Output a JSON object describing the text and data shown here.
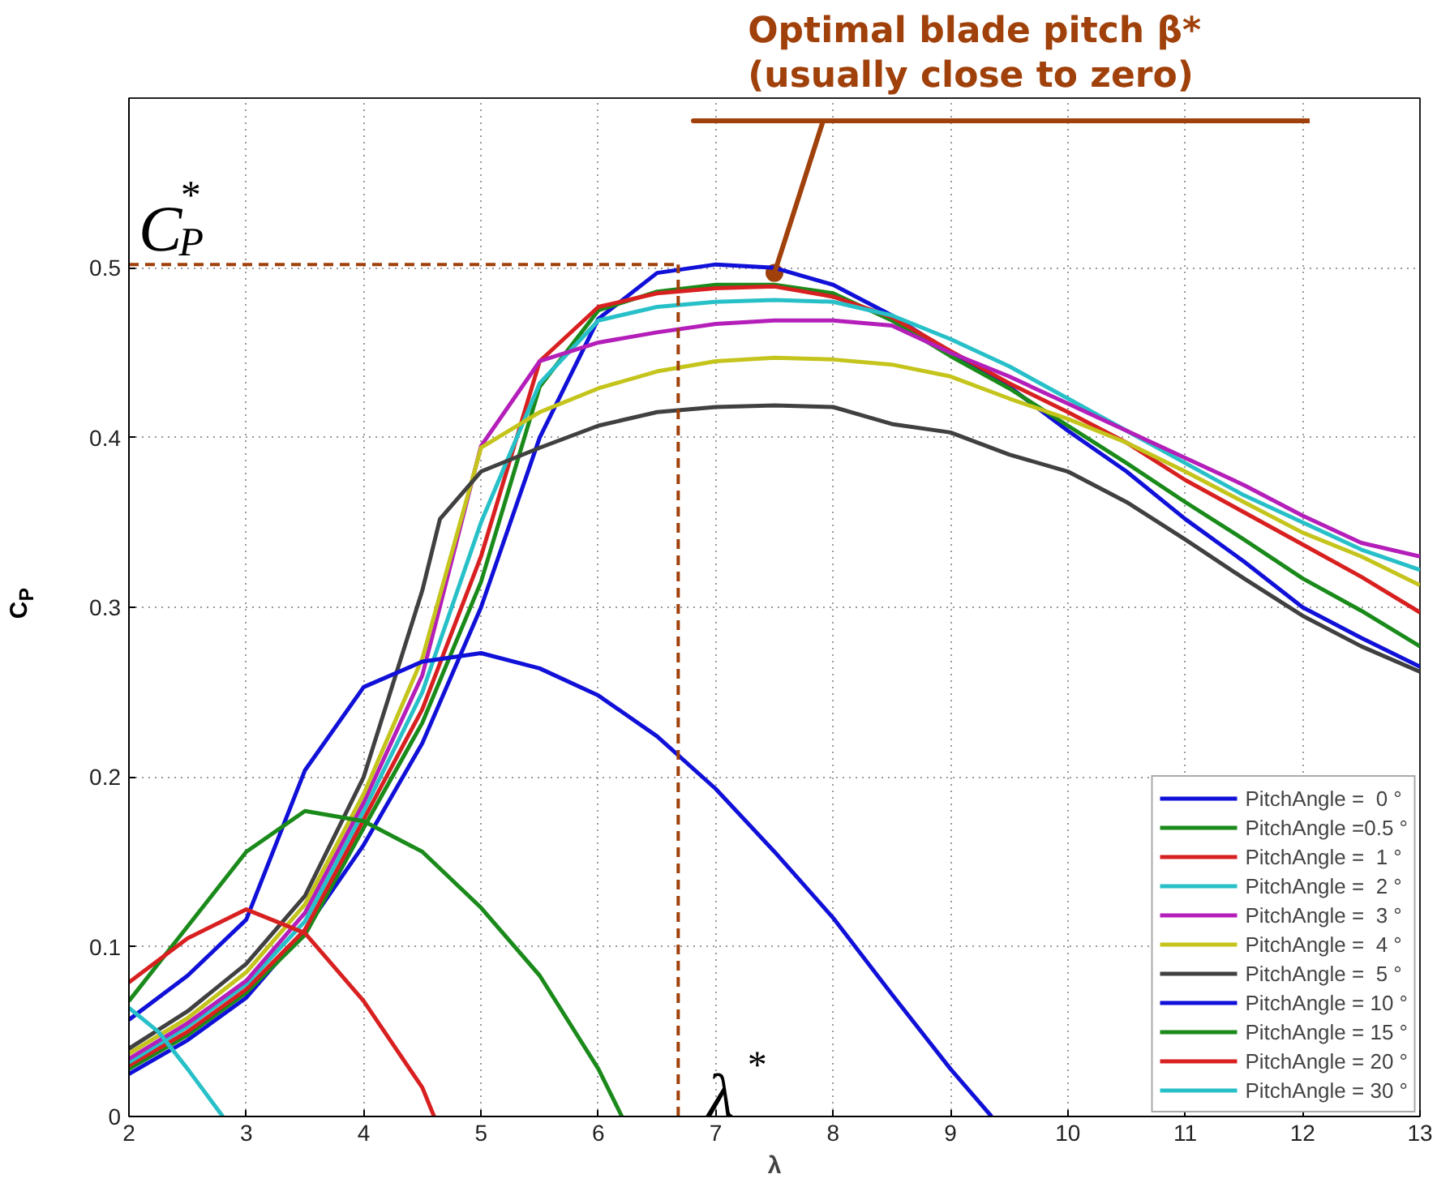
{
  "chart_data": {
    "type": "line",
    "xlabel": "λ",
    "ylabel": "C$_{P}$",
    "xlim": [
      2,
      13
    ],
    "ylim": [
      0,
      0.6
    ],
    "xticks": [
      2,
      3,
      4,
      5,
      6,
      7,
      8,
      9,
      10,
      11,
      12,
      13
    ],
    "yticks": [
      0,
      0.1,
      0.2,
      0.3,
      0.4,
      0.5
    ],
    "grid": true,
    "legend": "bottom right",
    "marker": "none",
    "line_style": "solid",
    "series": [
      {
        "name": "PitchAngle =  0 °",
        "color": "#1010d8",
        "x": [
          2,
          2.5,
          3,
          3.5,
          4,
          4.5,
          5,
          5.5,
          6,
          6.5,
          7,
          7.5,
          8,
          8.5,
          9,
          9.5,
          10,
          10.5,
          11,
          11.5,
          12,
          12.5,
          13
        ],
        "values": [
          0.025,
          0.045,
          0.07,
          0.11,
          0.16,
          0.22,
          0.3,
          0.4,
          0.47,
          0.497,
          0.502,
          0.5,
          0.49,
          0.472,
          0.45,
          0.43,
          0.404,
          0.38,
          0.352,
          0.327,
          0.3,
          0.282,
          0.265
        ]
      },
      {
        "name": "PitchAngle =0.5 °",
        "color": "#1a8a1a",
        "x": [
          2,
          2.5,
          3,
          3.5,
          4,
          4.5,
          5,
          5.5,
          6,
          6.5,
          7,
          7.5,
          8,
          8.5,
          9,
          9.5,
          10,
          10.5,
          11,
          11.5,
          12,
          12.5,
          13
        ],
        "values": [
          0.028,
          0.048,
          0.073,
          0.107,
          0.17,
          0.232,
          0.315,
          0.43,
          0.475,
          0.486,
          0.49,
          0.49,
          0.485,
          0.469,
          0.448,
          0.429,
          0.407,
          0.385,
          0.362,
          0.34,
          0.317,
          0.298,
          0.277
        ]
      },
      {
        "name": "PitchAngle =  1 °",
        "color": "#d82020",
        "x": [
          2,
          2.5,
          3,
          3.5,
          4,
          4.5,
          5,
          5.5,
          6,
          6.5,
          7,
          7.5,
          8,
          8.5,
          9,
          9.5,
          10,
          10.5,
          11,
          11.5,
          12,
          12.5,
          13
        ],
        "values": [
          0.03,
          0.05,
          0.075,
          0.11,
          0.175,
          0.24,
          0.33,
          0.445,
          0.477,
          0.485,
          0.488,
          0.489,
          0.483,
          0.471,
          0.451,
          0.432,
          0.415,
          0.397,
          0.375,
          0.356,
          0.337,
          0.318,
          0.297
        ]
      },
      {
        "name": "PitchAngle =  2 °",
        "color": "#28c0c8",
        "x": [
          2,
          2.5,
          3,
          3.5,
          4,
          4.5,
          5,
          5.5,
          6,
          6.5,
          7,
          7.5,
          8,
          8.5,
          9,
          9.5,
          10,
          10.5,
          11,
          11.5,
          12,
          12.5,
          13
        ],
        "values": [
          0.032,
          0.053,
          0.078,
          0.115,
          0.18,
          0.25,
          0.35,
          0.432,
          0.469,
          0.477,
          0.48,
          0.481,
          0.48,
          0.472,
          0.458,
          0.442,
          0.423,
          0.404,
          0.385,
          0.366,
          0.35,
          0.334,
          0.322
        ]
      },
      {
        "name": "PitchAngle =  3 °",
        "color": "#b41eb9",
        "x": [
          2,
          2.5,
          3,
          3.5,
          4,
          4.5,
          5,
          5.5,
          6,
          6.5,
          7,
          7.5,
          8,
          8.5,
          9,
          9.5,
          10,
          10.5,
          11,
          11.5,
          12,
          12.5,
          13
        ],
        "values": [
          0.034,
          0.055,
          0.08,
          0.12,
          0.185,
          0.26,
          0.395,
          0.445,
          0.456,
          0.462,
          0.467,
          0.469,
          0.469,
          0.466,
          0.45,
          0.436,
          0.42,
          0.404,
          0.388,
          0.372,
          0.354,
          0.338,
          0.33
        ]
      },
      {
        "name": "PitchAngle =  4 °",
        "color": "#c4c41c",
        "x": [
          2,
          2.5,
          3,
          3.5,
          4,
          4.5,
          5,
          5.5,
          6,
          6.5,
          7,
          7.5,
          8,
          8.5,
          9,
          9.5,
          10,
          10.5,
          11,
          11.5,
          12,
          12.5,
          13
        ],
        "values": [
          0.037,
          0.058,
          0.085,
          0.125,
          0.19,
          0.27,
          0.394,
          0.415,
          0.429,
          0.439,
          0.445,
          0.447,
          0.446,
          0.443,
          0.436,
          0.423,
          0.411,
          0.397,
          0.38,
          0.362,
          0.344,
          0.33,
          0.313
        ]
      },
      {
        "name": "PitchAngle =  5 °",
        "color": "#404040",
        "x": [
          2,
          2.5,
          3,
          3.5,
          4,
          4.5,
          4.65,
          5,
          5.5,
          6,
          6.5,
          7,
          7.5,
          8,
          8.5,
          9,
          9.5,
          10,
          10.5,
          11,
          11.5,
          12,
          12.5,
          13
        ],
        "values": [
          0.04,
          0.062,
          0.09,
          0.13,
          0.2,
          0.31,
          0.352,
          0.38,
          0.394,
          0.407,
          0.415,
          0.418,
          0.419,
          0.418,
          0.408,
          0.403,
          0.39,
          0.38,
          0.362,
          0.34,
          0.317,
          0.295,
          0.277,
          0.262
        ]
      },
      {
        "name": "PitchAngle = 10 °",
        "color": "#1010d8",
        "x": [
          2,
          2.5,
          3,
          3.5,
          4,
          4.5,
          5,
          5.5,
          6,
          6.5,
          7,
          7.5,
          8,
          8.5,
          9,
          9.35
        ],
        "values": [
          0.057,
          0.083,
          0.116,
          0.204,
          0.253,
          0.268,
          0.273,
          0.264,
          0.248,
          0.224,
          0.193,
          0.156,
          0.117,
          0.072,
          0.028,
          0
        ]
      },
      {
        "name": "PitchAngle = 15 °",
        "color": "#1a8a1a",
        "x": [
          2,
          2.5,
          3,
          3.5,
          4,
          4.5,
          5,
          5.5,
          6,
          6.2
        ],
        "values": [
          0.068,
          0.112,
          0.156,
          0.18,
          0.174,
          0.156,
          0.123,
          0.083,
          0.028,
          0
        ]
      },
      {
        "name": "PitchAngle = 20 °",
        "color": "#d82020",
        "x": [
          2,
          2.5,
          3,
          3.5,
          4,
          4.5,
          4.6
        ],
        "values": [
          0.079,
          0.105,
          0.122,
          0.108,
          0.068,
          0.017,
          0
        ]
      },
      {
        "name": "PitchAngle = 30 °",
        "color": "#28c0c8",
        "x": [
          2,
          2.25,
          2.5,
          2.8
        ],
        "values": [
          0.064,
          0.05,
          0.028,
          0
        ]
      }
    ],
    "ref_lines": [
      {
        "axis": "y",
        "value": 0.502,
        "label": "C$_{P}$$^{*}$",
        "color": "#a0400a",
        "line_style": "dashed"
      },
      {
        "axis": "x",
        "value": 6.68,
        "label": "λ$^{*}$",
        "color": "#a0400a",
        "line_style": "dashed"
      }
    ],
    "annotations": [
      {
        "text": "Optimal blade pitch β*\n(usually close to zero)",
        "x": 7.5,
        "y": 0.497
      }
    ]
  }
}
